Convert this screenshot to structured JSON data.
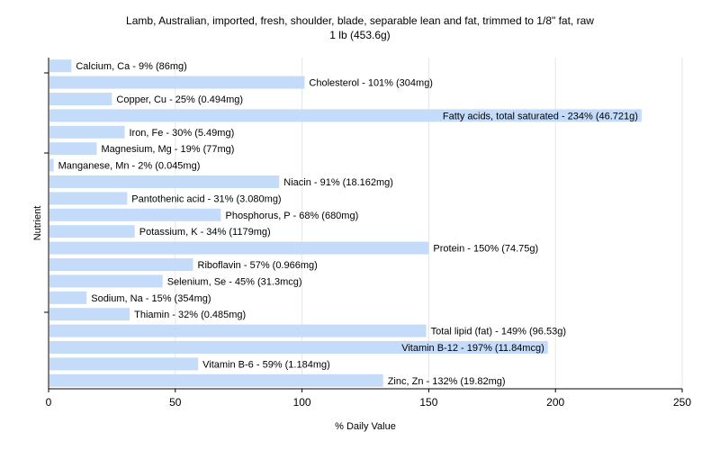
{
  "chart_data": {
    "type": "bar",
    "orientation": "horizontal",
    "title": [
      "Lamb, Australian, imported, fresh, shoulder, blade, separable lean and fat, trimmed to 1/8\" fat, raw",
      "1 lb (453.6g)"
    ],
    "xlabel": "% Daily Value",
    "ylabel": "Nutrient",
    "xlim": [
      0,
      250
    ],
    "xticks": [
      0,
      50,
      100,
      150,
      200,
      250
    ],
    "grid": true,
    "bar_color": "#c4dcfa",
    "categories": [
      "Calcium, Ca - 9% (86mg)",
      "Cholesterol - 101% (304mg)",
      "Copper, Cu - 25% (0.494mg)",
      "Fatty acids, total saturated - 234% (46.721g)",
      "Iron, Fe - 30% (5.49mg)",
      "Magnesium, Mg - 19% (77mg)",
      "Manganese, Mn - 2% (0.045mg)",
      "Niacin - 91% (18.162mg)",
      "Pantothenic acid - 31% (3.080mg)",
      "Phosphorus, P - 68% (680mg)",
      "Potassium, K - 34% (1179mg)",
      "Protein - 150% (74.75g)",
      "Riboflavin - 57% (0.966mg)",
      "Selenium, Se - 45% (31.3mcg)",
      "Sodium, Na - 15% (354mg)",
      "Thiamin - 32% (0.485mg)",
      "Total lipid (fat) - 149% (96.53g)",
      "Vitamin B-12 - 197% (11.84mcg)",
      "Vitamin B-6 - 59% (1.184mg)",
      "Zinc, Zn - 132% (19.82mg)"
    ],
    "values": [
      9,
      101,
      25,
      234,
      30,
      19,
      2,
      91,
      31,
      68,
      34,
      150,
      57,
      45,
      15,
      32,
      149,
      197,
      59,
      132
    ]
  }
}
